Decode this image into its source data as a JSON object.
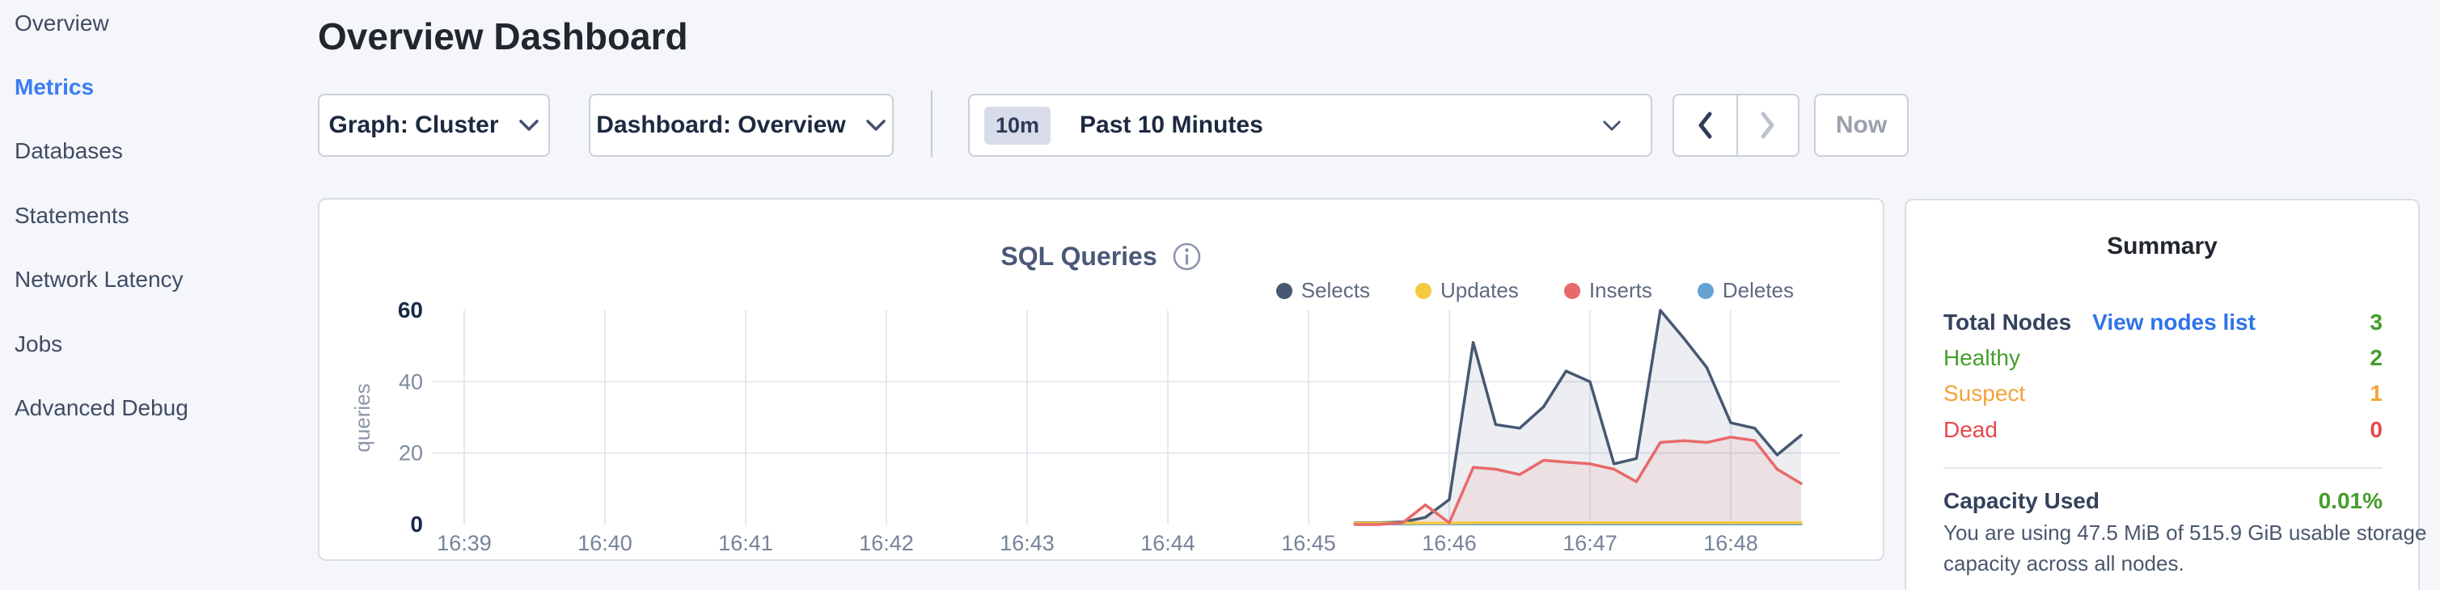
{
  "sidebar": {
    "items": [
      {
        "label": "Overview",
        "active": false
      },
      {
        "label": "Metrics",
        "active": true
      },
      {
        "label": "Databases",
        "active": false
      },
      {
        "label": "Statements",
        "active": false
      },
      {
        "label": "Network Latency",
        "active": false
      },
      {
        "label": "Jobs",
        "active": false
      },
      {
        "label": "Advanced Debug",
        "active": false
      }
    ]
  },
  "header": {
    "title": "Overview Dashboard"
  },
  "controls": {
    "graph_label": "Graph: Cluster",
    "dashboard_label": "Dashboard: Overview",
    "time_range_badge": "10m",
    "time_range_label": "Past 10 Minutes",
    "now_label": "Now"
  },
  "chart_data": {
    "type": "area",
    "title": "SQL Queries",
    "ylabel": "queries",
    "ylim": [
      0,
      60
    ],
    "y_ticks": [
      0,
      20,
      40,
      60
    ],
    "h_gridlines": [
      20,
      40
    ],
    "x_ticks": [
      "16:39",
      "16:40",
      "16:41",
      "16:42",
      "16:43",
      "16:44",
      "16:45",
      "16:46",
      "16:47",
      "16:48"
    ],
    "x_unit": "minutes after 16:39",
    "x": [
      6.33,
      6.5,
      6.67,
      6.83,
      7.0,
      7.17,
      7.33,
      7.5,
      7.67,
      7.83,
      8.0,
      8.17,
      8.33,
      8.5,
      8.67,
      8.83,
      9.0,
      9.17,
      9.33,
      9.5
    ],
    "series": [
      {
        "name": "Selects",
        "color": "#475872",
        "fill": "rgba(71,88,114,0.10)",
        "values": [
          0.5,
          0.5,
          0.7,
          2,
          7,
          51,
          28,
          27,
          33,
          43,
          40,
          17,
          18.5,
          60,
          52,
          44,
          28.5,
          27,
          19.5,
          25
        ]
      },
      {
        "name": "Updates",
        "color": "#f3ca40",
        "fill": "none",
        "values": [
          0.4,
          0.4,
          0.4,
          0.4,
          0.4,
          0.5,
          0.5,
          0.5,
          0.5,
          0.5,
          0.5,
          0.5,
          0.5,
          0.5,
          0.5,
          0.5,
          0.5,
          0.5,
          0.5,
          0.5
        ]
      },
      {
        "name": "Inserts",
        "color": "#e8696a",
        "fill": "rgba(232,105,106,0.10)",
        "values": [
          0,
          0,
          0.5,
          5.5,
          0.5,
          16,
          15.5,
          14,
          18,
          17.5,
          17,
          15.5,
          12,
          23,
          23.5,
          23,
          24.5,
          23.5,
          15.5,
          11.5
        ]
      },
      {
        "name": "Deletes",
        "color": "#66a1d4",
        "fill": "none",
        "values": [
          0.15,
          0.15,
          0.15,
          0.15,
          0.15,
          0.15,
          0.15,
          0.15,
          0.15,
          0.15,
          0.15,
          0.15,
          0.15,
          0.15,
          0.15,
          0.15,
          0.15,
          0.15,
          0.15,
          0.15
        ]
      }
    ],
    "legend_position": "top-right",
    "grid": true
  },
  "summary": {
    "title": "Summary",
    "rows": [
      {
        "label": "Total Nodes",
        "link": "View nodes list",
        "value": "3"
      },
      {
        "label": "Healthy",
        "value": "2"
      },
      {
        "label": "Suspect",
        "value": "1"
      },
      {
        "label": "Dead",
        "value": "0"
      }
    ],
    "capacity": {
      "label": "Capacity Used",
      "value": "0.01%",
      "description": "You are using 47.5 MiB of 515.9 GiB usable storage capacity across all nodes."
    }
  },
  "colors": {
    "active_nav_blue": "#3b7cf6",
    "link_blue": "#2e74e8",
    "healthy_green": "#459d2d",
    "suspect_orange": "#f2a43b",
    "dead_red": "#e5484d",
    "selects_navy": "#475872",
    "updates_yellow": "#f3ca40",
    "inserts_red": "#e8696a",
    "deletes_blue": "#66a1d4"
  }
}
